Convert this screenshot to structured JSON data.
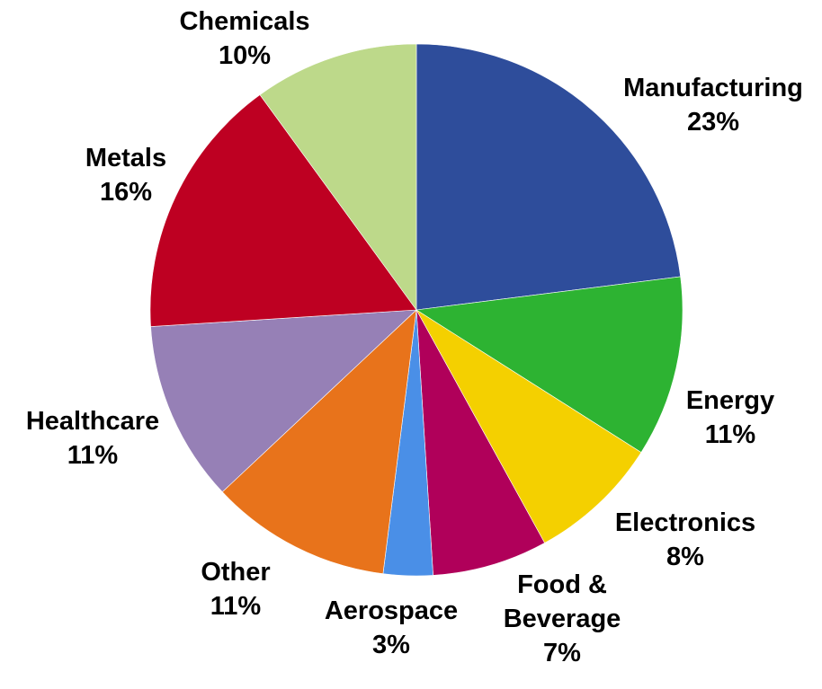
{
  "chart_data": {
    "type": "pie",
    "title": "",
    "start_angle_deg": 0,
    "direction": "clockwise",
    "slices": [
      {
        "name": "Manufacturing",
        "label_lines": [
          "Manufacturing"
        ],
        "value": 23,
        "value_label": "23%",
        "color": "#2E4D9B"
      },
      {
        "name": "Energy",
        "label_lines": [
          "Energy"
        ],
        "value": 11,
        "value_label": "11%",
        "color": "#2DB332"
      },
      {
        "name": "Electronics",
        "label_lines": [
          "Electronics"
        ],
        "value": 8,
        "value_label": "8%",
        "color": "#F4D000"
      },
      {
        "name": "Food & Beverage",
        "label_lines": [
          "Food &",
          "Beverage"
        ],
        "value": 7,
        "value_label": "7%",
        "color": "#B0005A"
      },
      {
        "name": "Aerospace",
        "label_lines": [
          "Aerospace"
        ],
        "value": 3,
        "value_label": "3%",
        "color": "#4A8FE7"
      },
      {
        "name": "Other",
        "label_lines": [
          "Other"
        ],
        "value": 11,
        "value_label": "11%",
        "color": "#E8731B"
      },
      {
        "name": "Healthcare",
        "label_lines": [
          "Healthcare"
        ],
        "value": 11,
        "value_label": "11%",
        "color": "#9680B6"
      },
      {
        "name": "Metals",
        "label_lines": [
          "Metals"
        ],
        "value": 16,
        "value_label": "16%",
        "color": "#BE0022"
      },
      {
        "name": "Chemicals",
        "label_lines": [
          "Chemicals"
        ],
        "value": 10,
        "value_label": "10%",
        "color": "#BDD98A"
      }
    ]
  }
}
